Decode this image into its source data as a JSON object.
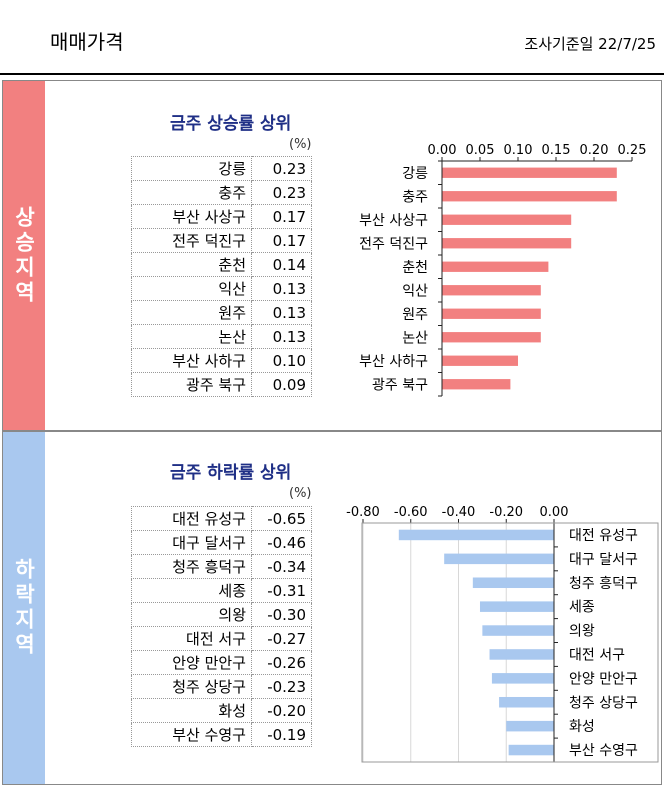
{
  "header": {
    "title": "매매가격",
    "date": "조사기준일 22/7/25"
  },
  "rise": {
    "section_label": "상승지역",
    "panel_title": "금주 상승률 상위",
    "unit": "(%)",
    "rows": [
      {
        "name": "강릉",
        "value": "0.23"
      },
      {
        "name": "충주",
        "value": "0.23"
      },
      {
        "name": "부산 사상구",
        "value": "0.17"
      },
      {
        "name": "전주 덕진구",
        "value": "0.17"
      },
      {
        "name": "춘천",
        "value": "0.14"
      },
      {
        "name": "익산",
        "value": "0.13"
      },
      {
        "name": "원주",
        "value": "0.13"
      },
      {
        "name": "논산",
        "value": "0.13"
      },
      {
        "name": "부산 사하구",
        "value": "0.10"
      },
      {
        "name": "광주 북구",
        "value": "0.09"
      }
    ]
  },
  "fall": {
    "section_label": "하락지역",
    "panel_title": "금주 하락률 상위",
    "unit": "(%)",
    "rows": [
      {
        "name": "대전 유성구",
        "value": "-0.65"
      },
      {
        "name": "대구 달서구",
        "value": "-0.46"
      },
      {
        "name": "청주 흥덕구",
        "value": "-0.34"
      },
      {
        "name": "세종",
        "value": "-0.31"
      },
      {
        "name": "의왕",
        "value": "-0.30"
      },
      {
        "name": "대전 서구",
        "value": "-0.27"
      },
      {
        "name": "안양 만안구",
        "value": "-0.26"
      },
      {
        "name": "청주 상당구",
        "value": "-0.23"
      },
      {
        "name": "화성",
        "value": "-0.20"
      },
      {
        "name": "부산 수영구",
        "value": "-0.19"
      }
    ]
  },
  "chart_data": [
    {
      "type": "bar",
      "orientation": "horizontal",
      "categories": [
        "강릉",
        "충주",
        "부산 사상구",
        "전주 덕진구",
        "춘천",
        "익산",
        "원주",
        "논산",
        "부산 사하구",
        "광주 북구"
      ],
      "values": [
        0.23,
        0.23,
        0.17,
        0.17,
        0.14,
        0.13,
        0.13,
        0.13,
        0.1,
        0.09
      ],
      "xlim": [
        0,
        0.25
      ],
      "ticks": [
        "0.00",
        "0.05",
        "0.10",
        "0.15",
        "0.20",
        "0.25"
      ],
      "axis_position": "top",
      "grid": false,
      "color": "#f28080"
    },
    {
      "type": "bar",
      "orientation": "horizontal",
      "categories": [
        "대전 유성구",
        "대구 달서구",
        "청주 흥덕구",
        "세종",
        "의왕",
        "대전 서구",
        "안양 만안구",
        "청주 상당구",
        "화성",
        "부산 수영구"
      ],
      "values": [
        -0.65,
        -0.46,
        -0.34,
        -0.31,
        -0.3,
        -0.27,
        -0.26,
        -0.23,
        -0.2,
        -0.19
      ],
      "xlim": [
        -0.8,
        0
      ],
      "ticks": [
        "-0.80",
        "-0.60",
        "-0.40",
        "-0.20",
        "0.00"
      ],
      "axis_position": "top",
      "grid": true,
      "color": "#a9c8ef"
    }
  ]
}
